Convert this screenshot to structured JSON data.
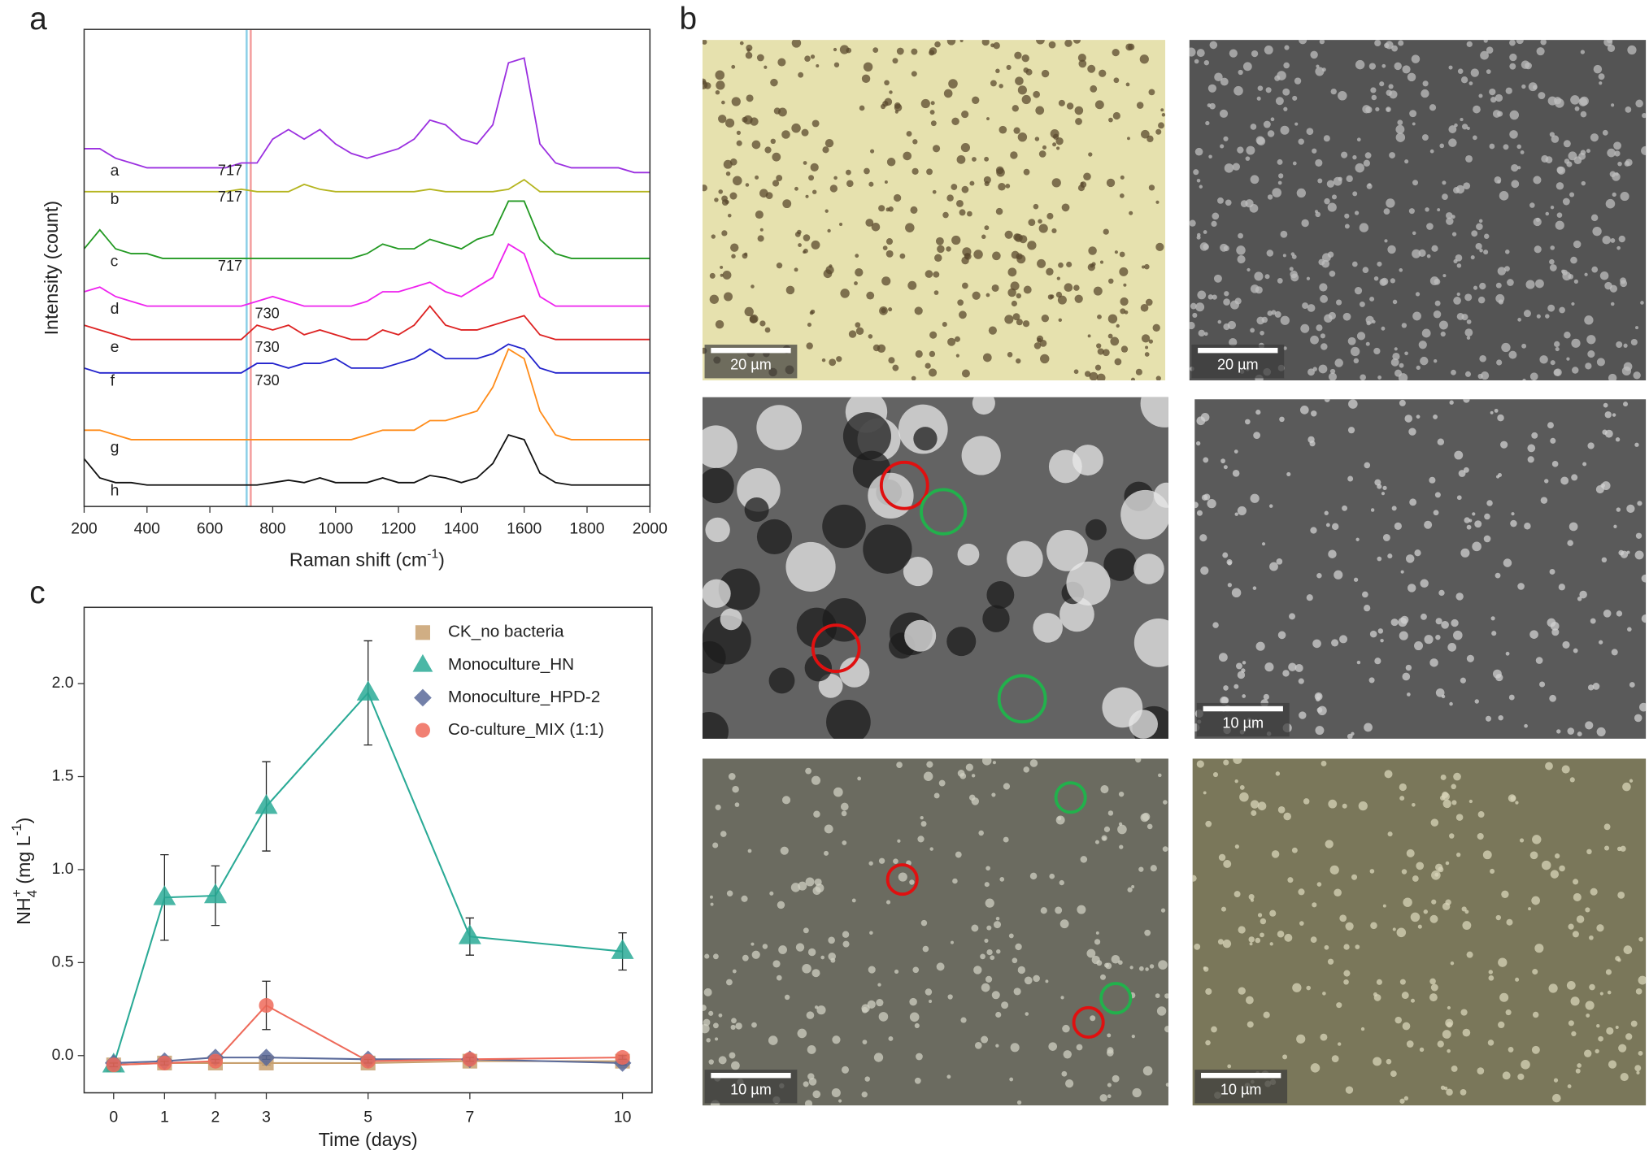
{
  "panel_labels": [
    "a",
    "b",
    "c"
  ],
  "chart_data": [
    {
      "type": "spectra",
      "x_label": {
        "text": "Raman shift (cm",
        "sup": "-1",
        "close": ")"
      },
      "y_label": "Intensity (count)",
      "x": [
        200,
        250,
        300,
        350,
        400,
        450,
        500,
        550,
        600,
        650,
        700,
        750,
        800,
        850,
        900,
        950,
        1000,
        1050,
        1100,
        1150,
        1200,
        1250,
        1300,
        1350,
        1400,
        1450,
        1500,
        1550,
        1600,
        1650,
        1700,
        1750,
        1800,
        1850,
        1900,
        1950,
        2000
      ],
      "xlim": [
        200,
        2000
      ],
      "xticks": [
        200,
        400,
        600,
        800,
        1000,
        1200,
        1400,
        1600,
        1800,
        2000
      ],
      "ylim": [
        0,
        100
      ],
      "reference_lines": [
        {
          "x": 717,
          "color": "#8fd0e8"
        },
        {
          "x": 730,
          "color": "#f4a0a0"
        }
      ],
      "series": [
        {
          "name": "a",
          "color": "#9b30e0",
          "annotation": 717,
          "values": [
            75,
            75,
            73,
            72,
            71,
            71,
            71,
            71,
            71,
            71,
            72,
            72,
            77,
            79,
            77,
            79,
            76,
            74,
            73,
            74,
            75,
            77,
            81,
            80,
            77,
            76,
            80,
            93,
            94,
            76,
            72,
            71,
            71,
            71,
            71,
            70,
            70
          ]
        },
        {
          "name": "b",
          "color": "#b5b520",
          "annotation": 717,
          "values": [
            66,
            66,
            66,
            66,
            66,
            66,
            66,
            66,
            66,
            66,
            66.5,
            66,
            66,
            66,
            67.5,
            66.5,
            66,
            66,
            66,
            66,
            66,
            66,
            66.5,
            66,
            66,
            66,
            66,
            66.5,
            68.5,
            66,
            66,
            66,
            66,
            66,
            66,
            66,
            66
          ]
        },
        {
          "name": "c",
          "color": "#229922",
          "annotation": 717,
          "values": [
            54,
            58,
            54,
            53,
            53,
            52,
            52,
            52,
            52,
            52,
            52,
            52,
            52,
            52,
            52,
            52,
            52,
            52,
            53,
            55,
            54,
            54,
            56,
            55,
            54,
            56,
            57,
            64,
            64,
            56,
            53,
            52,
            52,
            52,
            52,
            52,
            52
          ]
        },
        {
          "name": "d",
          "color": "#ee22ee",
          "annotation": 730,
          "values": [
            45,
            46,
            44,
            43,
            42,
            42,
            42,
            42,
            42,
            42,
            42,
            43,
            44,
            43,
            42,
            42,
            42,
            42,
            43,
            45,
            45,
            46,
            47,
            45,
            44,
            46,
            48,
            55,
            53,
            44,
            42,
            42,
            42,
            42,
            42,
            42,
            42
          ]
        },
        {
          "name": "e",
          "color": "#dd2222",
          "annotation": 730,
          "values": [
            38,
            37,
            36,
            35,
            35,
            35,
            35,
            35,
            35,
            35,
            35,
            38,
            37,
            38,
            36,
            37,
            36,
            35,
            35,
            37,
            36,
            38,
            42,
            38,
            37,
            37,
            38,
            39,
            40,
            36,
            35,
            35,
            35,
            35,
            35,
            35,
            35
          ]
        },
        {
          "name": "f",
          "color": "#2222cc",
          "annotation": 730,
          "values": [
            29,
            28,
            28,
            28,
            28,
            28,
            28,
            28,
            28,
            28,
            28,
            30,
            30,
            29,
            30,
            30,
            31,
            29,
            29,
            29,
            30,
            31,
            33,
            31,
            31,
            31,
            32,
            34,
            33,
            29,
            28,
            28,
            28,
            28,
            28,
            28,
            28
          ]
        },
        {
          "name": "g",
          "color": "#ff8c1a",
          "values": [
            16,
            16,
            15,
            14,
            14,
            14,
            14,
            14,
            14,
            14,
            14,
            14,
            14,
            14,
            14,
            14,
            14,
            14,
            15,
            16,
            16,
            16,
            18,
            18,
            19,
            20,
            25,
            33,
            31,
            20,
            15,
            14,
            14,
            14,
            14,
            14,
            14
          ]
        },
        {
          "name": "h",
          "color": "#111111",
          "values": [
            10,
            6,
            5,
            5,
            4.5,
            4.5,
            4.5,
            4.5,
            4.5,
            4.5,
            4.5,
            4.5,
            5,
            5.5,
            5,
            6,
            5,
            5,
            5,
            6,
            5,
            5,
            6.5,
            6,
            5,
            6,
            9,
            15,
            14,
            7,
            5,
            4.5,
            4.5,
            4.5,
            4.5,
            4.5,
            4.5
          ]
        }
      ]
    },
    {
      "type": "line",
      "x_label": "Time (days)",
      "y_label": {
        "text": "NH",
        "sub": "4",
        "sup": "+",
        "unit": " (mg L",
        "unit_sup": "-1",
        "close": ")"
      },
      "x": [
        0,
        1,
        2,
        3,
        5,
        7,
        10
      ],
      "xlim": [
        -0.58,
        10.58
      ],
      "xticks": [
        0,
        1,
        2,
        3,
        5,
        7,
        10
      ],
      "ylim": [
        -0.2,
        2.41
      ],
      "yticks": [
        {
          "value": 0,
          "label": "0.0"
        },
        {
          "value": 0.5,
          "label": "0.5"
        },
        {
          "value": 1,
          "label": "1.0"
        },
        {
          "value": 1.5,
          "label": "1.5"
        },
        {
          "value": 2,
          "label": "2.0"
        }
      ],
      "legend": "upper right",
      "series": [
        {
          "name": "CK_no bacteria",
          "color": "#c8a06e",
          "marker": "square",
          "values": [
            -0.05,
            -0.04,
            -0.04,
            -0.04,
            -0.04,
            -0.03,
            -0.03
          ],
          "errors": [
            0.01,
            0.01,
            0.01,
            0.01,
            0.01,
            0.01,
            0.01
          ]
        },
        {
          "name": "Monoculture_HN",
          "color": "#2aaa96",
          "marker": "triangle",
          "values": [
            -0.05,
            0.85,
            0.86,
            1.34,
            1.95,
            0.64,
            0.56
          ],
          "errors": [
            0.01,
            0.23,
            0.16,
            0.24,
            0.28,
            0.1,
            0.1
          ]
        },
        {
          "name": "Monoculture_HPD-2",
          "color": "#5a6a9a",
          "marker": "diamond",
          "values": [
            -0.04,
            -0.03,
            -0.01,
            -0.01,
            -0.02,
            -0.02,
            -0.04
          ],
          "errors": [
            0.01,
            0.01,
            0.01,
            0.01,
            0.01,
            0.01,
            0.01
          ]
        },
        {
          "name": "Co-culture_MIX (1:1)",
          "color": "#ee6a5a",
          "marker": "circle",
          "values": [
            -0.05,
            -0.04,
            -0.03,
            0.27,
            -0.03,
            -0.02,
            -0.01
          ],
          "errors": [
            0.01,
            0.01,
            0.01,
            0.13,
            0.01,
            0.01,
            0.01
          ]
        }
      ]
    }
  ],
  "images": {
    "scale_bars": [
      "20 µm",
      "20 µm",
      null,
      "10 µm",
      "10 µm",
      "10 µm"
    ]
  }
}
